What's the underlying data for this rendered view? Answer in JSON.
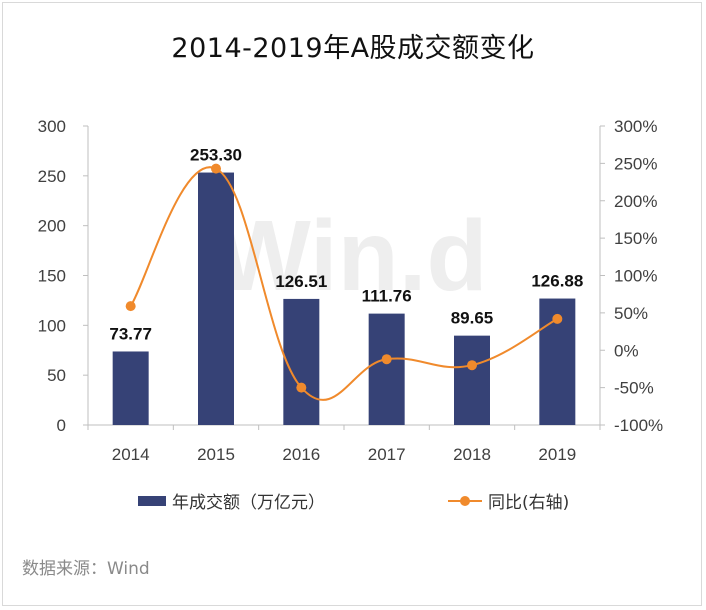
{
  "chart_data": {
    "type": "bar",
    "title": "2014-2019年A股成交额变化",
    "categories": [
      "2014",
      "2015",
      "2016",
      "2017",
      "2018",
      "2019"
    ],
    "series": [
      {
        "name": "年成交额（万亿元）",
        "type": "bar",
        "axis": "left",
        "color": "#364276",
        "values": [
          73.77,
          253.3,
          126.51,
          111.76,
          89.65,
          126.88
        ],
        "labels": [
          "73.77",
          "253.30",
          "126.51",
          "111.76",
          "89.65",
          "126.88"
        ]
      },
      {
        "name": "同比(右轴)",
        "type": "line",
        "axis": "right",
        "color": "#f08a2c",
        "values": [
          59,
          243,
          -50,
          -12,
          -20,
          42
        ]
      }
    ],
    "y_left": {
      "min": 0,
      "max": 300,
      "step": 50,
      "ticks": [
        "0",
        "50",
        "100",
        "150",
        "200",
        "250",
        "300"
      ]
    },
    "y_right": {
      "min": -100,
      "max": 300,
      "step": 50,
      "ticks": [
        "-100%",
        "-50%",
        "0%",
        "50%",
        "100%",
        "150%",
        "200%",
        "250%",
        "300%"
      ]
    },
    "watermark": "Win.d",
    "grid": false,
    "legend_position": "bottom"
  },
  "source": "数据来源：Wind"
}
